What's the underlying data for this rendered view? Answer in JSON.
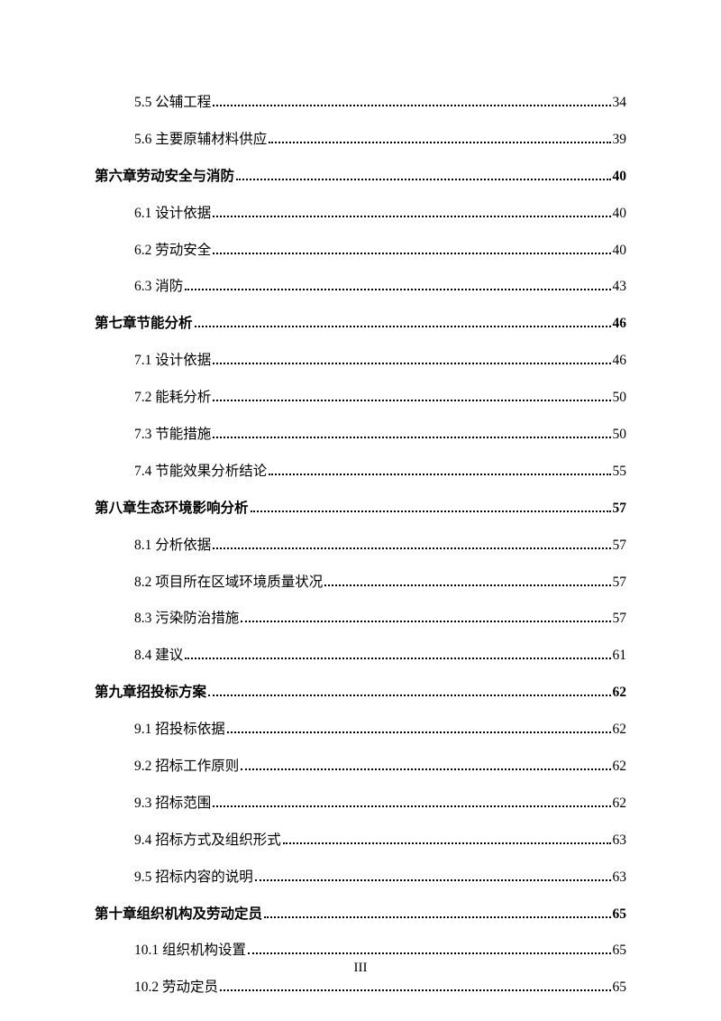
{
  "entries": [
    {
      "level": "section",
      "title": "5.5 公辅工程",
      "page": "34"
    },
    {
      "level": "section",
      "title": "5.6 主要原辅材料供应",
      "page": "39"
    },
    {
      "level": "chapter",
      "title": "第六章劳动安全与消防",
      "page": "40"
    },
    {
      "level": "section",
      "title": "6.1 设计依据",
      "page": "40"
    },
    {
      "level": "section",
      "title": "6.2 劳动安全",
      "page": "40"
    },
    {
      "level": "section",
      "title": "6.3 消防",
      "page": "43"
    },
    {
      "level": "chapter",
      "title": "第七章节能分析",
      "page": "46"
    },
    {
      "level": "section",
      "title": "7.1 设计依据",
      "page": "46"
    },
    {
      "level": "section",
      "title": "7.2 能耗分析",
      "page": "50"
    },
    {
      "level": "section",
      "title": "7.3 节能措施",
      "page": "50"
    },
    {
      "level": "section",
      "title": "7.4 节能效果分析结论",
      "page": "55"
    },
    {
      "level": "chapter",
      "title": "第八章生态环境影响分析",
      "page": "57"
    },
    {
      "level": "section",
      "title": "8.1 分析依据",
      "page": "57"
    },
    {
      "level": "section",
      "title": "8.2 项目所在区域环境质量状况",
      "page": "57"
    },
    {
      "level": "section",
      "title": "8.3 污染防治措施",
      "page": "57"
    },
    {
      "level": "section",
      "title": "8.4 建议",
      "page": "61"
    },
    {
      "level": "chapter",
      "title": "第九章招投标方案",
      "page": "62"
    },
    {
      "level": "section",
      "title": "9.1 招投标依据",
      "page": "62"
    },
    {
      "level": "section",
      "title": "9.2 招标工作原则",
      "page": "62"
    },
    {
      "level": "section",
      "title": "9.3 招标范围",
      "page": "62"
    },
    {
      "level": "section",
      "title": "9.4 招标方式及组织形式",
      "page": "63"
    },
    {
      "level": "section",
      "title": "9.5 招标内容的说明",
      "page": "63"
    },
    {
      "level": "chapter",
      "title": "第十章组织机构及劳动定员",
      "page": "65"
    },
    {
      "level": "section",
      "title": "10.1 组织机构设置",
      "page": "65"
    },
    {
      "level": "section",
      "title": "10.2 劳动定员",
      "page": "65"
    }
  ],
  "pageNumber": "III",
  "colors": {
    "text": "#000000",
    "background": "#ffffff"
  },
  "fonts": {
    "base_size": 15.5,
    "page_num_size": 15
  }
}
